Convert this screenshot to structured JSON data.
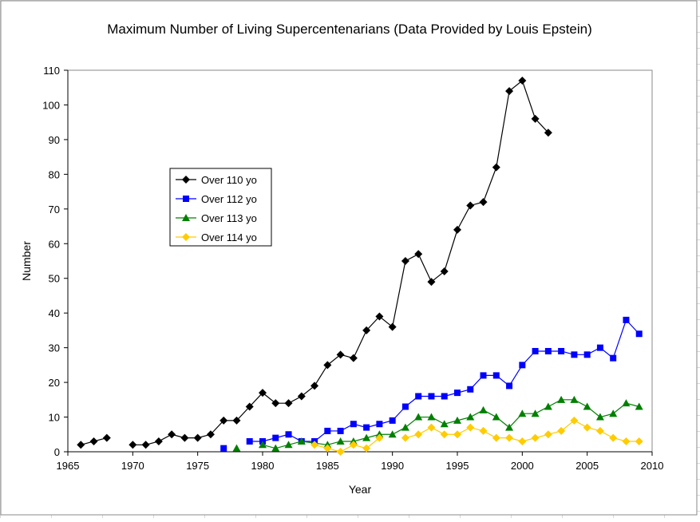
{
  "chart_data": {
    "type": "line",
    "title": "Maximum Number of Living Supercentenarians (Data Provided by Louis Epstein)",
    "xlabel": "Year",
    "ylabel": "Number",
    "xlim": [
      1965,
      2010
    ],
    "ylim": [
      0,
      110
    ],
    "xticks": [
      1965,
      1970,
      1975,
      1980,
      1985,
      1990,
      1995,
      2000,
      2005,
      2010
    ],
    "yticks": [
      0,
      10,
      20,
      30,
      40,
      50,
      60,
      70,
      80,
      90,
      100,
      110
    ],
    "grid": false,
    "legend_placement": "upper-left inside",
    "series": [
      {
        "name": "Over 110 yo",
        "color": "#000000",
        "marker": "diamond",
        "points": [
          [
            1966,
            2
          ],
          [
            1967,
            3
          ],
          [
            1968,
            4
          ],
          null,
          [
            1970,
            2
          ],
          [
            1971,
            2
          ],
          [
            1972,
            3
          ],
          [
            1973,
            5
          ],
          [
            1974,
            4
          ],
          [
            1975,
            4
          ],
          [
            1976,
            5
          ],
          [
            1977,
            9
          ],
          [
            1978,
            9
          ],
          [
            1979,
            13
          ],
          [
            1980,
            17
          ],
          [
            1981,
            14
          ],
          [
            1982,
            14
          ],
          [
            1983,
            16
          ],
          [
            1984,
            19
          ],
          [
            1985,
            25
          ],
          [
            1986,
            28
          ],
          [
            1987,
            27
          ],
          [
            1988,
            35
          ],
          [
            1989,
            39
          ],
          [
            1990,
            36
          ],
          [
            1991,
            55
          ],
          [
            1992,
            57
          ],
          [
            1993,
            49
          ],
          [
            1994,
            52
          ],
          [
            1995,
            64
          ],
          [
            1996,
            71
          ],
          [
            1997,
            72
          ],
          [
            1998,
            82
          ],
          [
            1999,
            104
          ],
          [
            2000,
            107
          ],
          [
            2001,
            96
          ],
          [
            2002,
            92
          ]
        ]
      },
      {
        "name": "Over 112 yo",
        "color": "#0000FF",
        "marker": "square",
        "points": [
          [
            1977,
            1
          ],
          null,
          [
            1979,
            3
          ],
          [
            1980,
            3
          ],
          [
            1981,
            4
          ],
          [
            1982,
            5
          ],
          [
            1983,
            3
          ],
          [
            1984,
            3
          ],
          [
            1985,
            6
          ],
          [
            1986,
            6
          ],
          [
            1987,
            8
          ],
          [
            1988,
            7
          ],
          [
            1989,
            8
          ],
          [
            1990,
            9
          ],
          [
            1991,
            13
          ],
          [
            1992,
            16
          ],
          [
            1993,
            16
          ],
          [
            1994,
            16
          ],
          [
            1995,
            17
          ],
          [
            1996,
            18
          ],
          [
            1997,
            22
          ],
          [
            1998,
            22
          ],
          [
            1999,
            19
          ],
          [
            2000,
            25
          ],
          [
            2001,
            29
          ],
          [
            2002,
            29
          ],
          [
            2003,
            29
          ],
          [
            2004,
            28
          ],
          [
            2005,
            28
          ],
          [
            2006,
            30
          ],
          [
            2007,
            27
          ],
          [
            2008,
            38
          ],
          [
            2009,
            34
          ]
        ]
      },
      {
        "name": "Over 113 yo",
        "color": "#008000",
        "marker": "triangle",
        "points": [
          [
            1978,
            1
          ],
          null,
          [
            1980,
            2
          ],
          [
            1981,
            1
          ],
          [
            1982,
            2
          ],
          [
            1983,
            3
          ],
          [
            1985,
            2
          ],
          [
            1986,
            3
          ],
          [
            1987,
            3
          ],
          [
            1988,
            4
          ],
          [
            1989,
            5
          ],
          [
            1990,
            5
          ],
          [
            1991,
            7
          ],
          [
            1992,
            10
          ],
          [
            1993,
            10
          ],
          [
            1994,
            8
          ],
          [
            1995,
            9
          ],
          [
            1996,
            10
          ],
          [
            1997,
            12
          ],
          [
            1998,
            10
          ],
          [
            1999,
            7
          ],
          [
            2000,
            11
          ],
          [
            2001,
            11
          ],
          [
            2002,
            13
          ],
          [
            2003,
            15
          ],
          [
            2004,
            15
          ],
          [
            2005,
            13
          ],
          [
            2006,
            10
          ],
          [
            2007,
            11
          ],
          [
            2008,
            14
          ],
          [
            2009,
            13
          ]
        ]
      },
      {
        "name": "Over 114 yo",
        "color": "#FFCC00",
        "marker": "diamond",
        "points": [
          [
            1984,
            2
          ],
          [
            1985,
            1
          ],
          [
            1986,
            0
          ],
          [
            1987,
            2
          ],
          [
            1988,
            1
          ],
          [
            1989,
            4
          ],
          null,
          [
            1991,
            4
          ],
          [
            1992,
            5
          ],
          [
            1993,
            7
          ],
          [
            1994,
            5
          ],
          [
            1995,
            5
          ],
          [
            1996,
            7
          ],
          [
            1997,
            6
          ],
          [
            1998,
            4
          ],
          [
            1999,
            4
          ],
          [
            2000,
            3
          ],
          [
            2001,
            4
          ],
          [
            2002,
            5
          ],
          [
            2003,
            6
          ],
          [
            2004,
            9
          ],
          [
            2005,
            7
          ],
          [
            2006,
            6
          ],
          [
            2007,
            4
          ],
          [
            2008,
            3
          ],
          [
            2009,
            3
          ]
        ]
      }
    ]
  }
}
